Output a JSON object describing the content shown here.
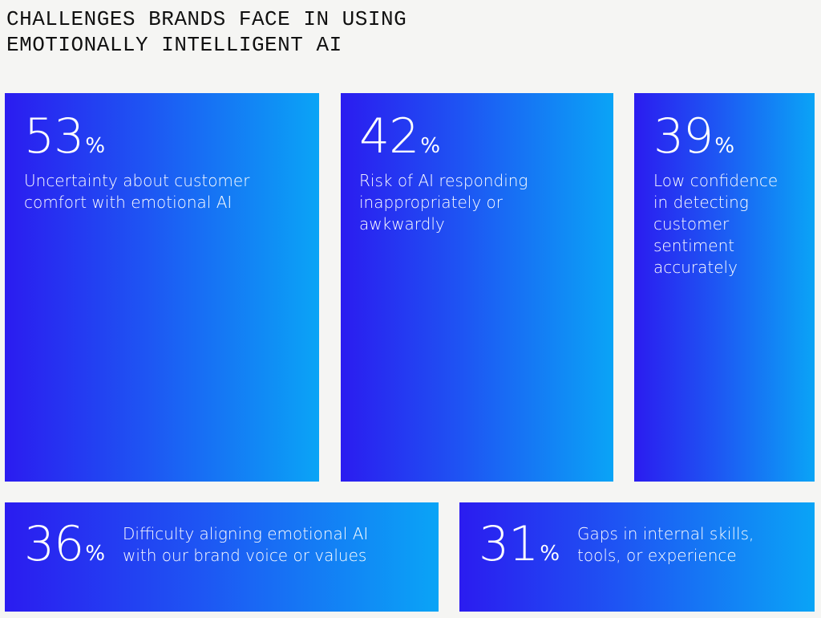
{
  "title": "CHALLENGES BRANDS FACE IN USING EMOTIONALLY INTELLIGENT AI",
  "cards": [
    {
      "value": 53,
      "unit": "%",
      "label": "Uncertainty about customer comfort with emotional AI"
    },
    {
      "value": 42,
      "unit": "%",
      "label": "Risk of AI responding inappropriately or awkwardly"
    },
    {
      "value": 39,
      "unit": "%",
      "label": "Low confidence in detecting customer sentiment accurately"
    },
    {
      "value": 36,
      "unit": "%",
      "label": "Difficulty aligning emotional AI with our brand voice or values"
    },
    {
      "value": 31,
      "unit": "%",
      "label": "Gaps in internal skills, tools, or experience"
    }
  ]
}
